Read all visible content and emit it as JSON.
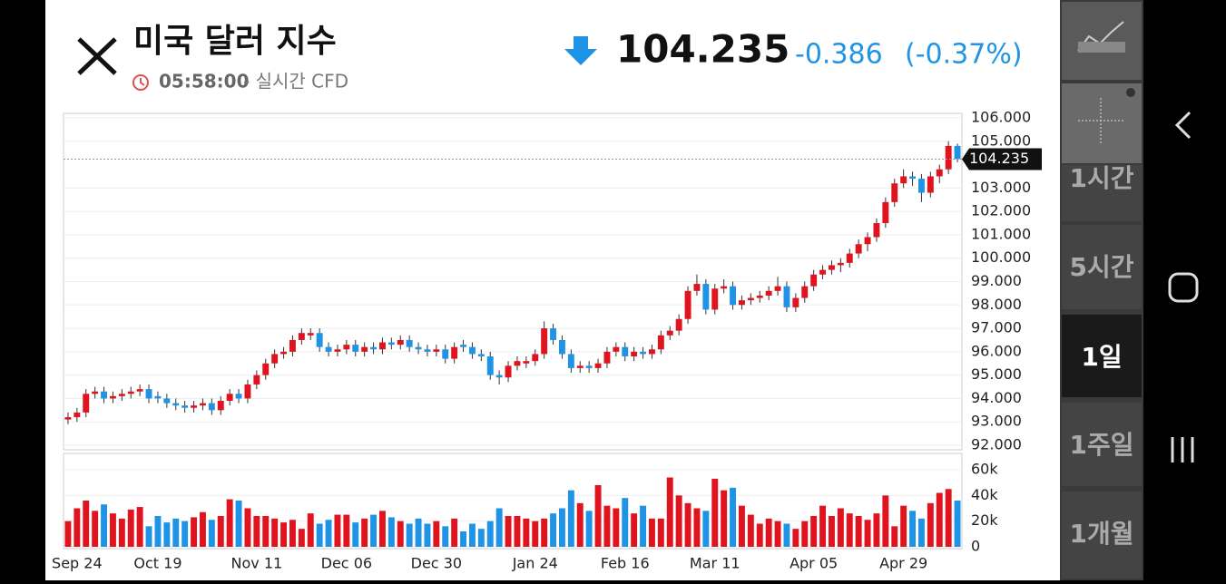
{
  "header": {
    "title": "미국 달러 지수",
    "time": "05:58:00",
    "source": "- 실시간 CFD",
    "price": "104.235",
    "change": "-0.386",
    "change_pct": "(-0.37%)"
  },
  "sidebar": {
    "buttons": [
      "1시간",
      "5시간",
      "1일",
      "1주일",
      "1개월"
    ],
    "selected": 2
  },
  "chart_data": {
    "type": "candlestick",
    "current": 104.235,
    "current_label": "104.235",
    "ylim": [
      92,
      106
    ],
    "yticks": [
      {
        "value": 92,
        "label": "92.000"
      },
      {
        "value": 93,
        "label": "93.000"
      },
      {
        "value": 94,
        "label": "94.000"
      },
      {
        "value": 95,
        "label": "95.000"
      },
      {
        "value": 96,
        "label": "96.000"
      },
      {
        "value": 97,
        "label": "97.000"
      },
      {
        "value": 98,
        "label": "98.000"
      },
      {
        "value": 99,
        "label": "99.000"
      },
      {
        "value": 100,
        "label": "100.000"
      },
      {
        "value": 101,
        "label": "101.000"
      },
      {
        "value": 102,
        "label": "102.000"
      },
      {
        "value": 103,
        "label": "103.000"
      },
      {
        "value": 105,
        "label": "105.000"
      },
      {
        "value": 106,
        "label": "106.000"
      }
    ],
    "volume_lim": [
      0,
      60000
    ],
    "volume_ticks": [
      {
        "value": 0,
        "label": "0"
      },
      {
        "value": 20000,
        "label": "20k"
      },
      {
        "value": 40000,
        "label": "40k"
      },
      {
        "value": 60000,
        "label": "60k"
      }
    ],
    "xlabels": [
      {
        "index": 1,
        "label": "Sep 24"
      },
      {
        "index": 10,
        "label": "Oct 19"
      },
      {
        "index": 21,
        "label": "Nov 11"
      },
      {
        "index": 31,
        "label": "Dec 06"
      },
      {
        "index": 41,
        "label": "Dec 30"
      },
      {
        "index": 52,
        "label": "Jan 24"
      },
      {
        "index": 62,
        "label": "Feb 16"
      },
      {
        "index": 72,
        "label": "Mar 11"
      },
      {
        "index": 83,
        "label": "Apr 05"
      },
      {
        "index": 93,
        "label": "Apr 29"
      }
    ],
    "up_color": "#e0141e",
    "down_color": "#1f93e6",
    "ohlc": [
      [
        93.1,
        93.4,
        92.9,
        93.2
      ],
      [
        93.2,
        93.6,
        93.0,
        93.4
      ],
      [
        93.4,
        94.4,
        93.2,
        94.2
      ],
      [
        94.2,
        94.5,
        94.0,
        94.3
      ],
      [
        94.3,
        94.5,
        93.8,
        94.0
      ],
      [
        94.0,
        94.3,
        93.8,
        94.1
      ],
      [
        94.1,
        94.4,
        93.9,
        94.2
      ],
      [
        94.2,
        94.5,
        94.0,
        94.3
      ],
      [
        94.3,
        94.6,
        94.1,
        94.4
      ],
      [
        94.4,
        94.6,
        93.8,
        94.0
      ],
      [
        94.1,
        94.3,
        93.8,
        94.0
      ],
      [
        94.0,
        94.2,
        93.6,
        93.8
      ],
      [
        93.8,
        94.0,
        93.5,
        93.7
      ],
      [
        93.7,
        93.9,
        93.4,
        93.6
      ],
      [
        93.6,
        93.9,
        93.4,
        93.7
      ],
      [
        93.7,
        94.0,
        93.5,
        93.8
      ],
      [
        93.8,
        94.0,
        93.3,
        93.5
      ],
      [
        93.5,
        94.1,
        93.3,
        93.9
      ],
      [
        93.9,
        94.4,
        93.7,
        94.2
      ],
      [
        94.2,
        94.4,
        93.8,
        94.0
      ],
      [
        94.0,
        94.8,
        93.8,
        94.6
      ],
      [
        94.6,
        95.2,
        94.4,
        95.0
      ],
      [
        95.0,
        95.7,
        94.8,
        95.5
      ],
      [
        95.5,
        96.1,
        95.3,
        95.9
      ],
      [
        95.9,
        96.2,
        95.7,
        96.0
      ],
      [
        96.0,
        96.7,
        95.8,
        96.5
      ],
      [
        96.5,
        97.0,
        96.3,
        96.8
      ],
      [
        96.7,
        97.0,
        96.5,
        96.8
      ],
      [
        96.8,
        97.0,
        96.0,
        96.2
      ],
      [
        96.2,
        96.4,
        95.8,
        96.0
      ],
      [
        96.0,
        96.3,
        95.8,
        96.1
      ],
      [
        96.1,
        96.5,
        95.9,
        96.3
      ],
      [
        96.3,
        96.5,
        95.8,
        96.0
      ],
      [
        96.0,
        96.4,
        95.8,
        96.2
      ],
      [
        96.2,
        96.4,
        95.9,
        96.1
      ],
      [
        96.1,
        96.6,
        95.9,
        96.4
      ],
      [
        96.4,
        96.6,
        96.1,
        96.3
      ],
      [
        96.3,
        96.7,
        96.1,
        96.5
      ],
      [
        96.5,
        96.7,
        96.0,
        96.2
      ],
      [
        96.2,
        96.4,
        95.9,
        96.1
      ],
      [
        96.1,
        96.3,
        95.8,
        96.0
      ],
      [
        96.0,
        96.3,
        95.8,
        96.1
      ],
      [
        96.1,
        96.3,
        95.5,
        95.7
      ],
      [
        95.7,
        96.4,
        95.5,
        96.2
      ],
      [
        96.3,
        96.5,
        96.0,
        96.2
      ],
      [
        96.2,
        96.4,
        95.7,
        95.9
      ],
      [
        95.9,
        96.1,
        95.6,
        95.8
      ],
      [
        95.8,
        96.0,
        94.8,
        95.0
      ],
      [
        95.0,
        95.2,
        94.6,
        94.9
      ],
      [
        94.9,
        95.6,
        94.7,
        95.4
      ],
      [
        95.4,
        95.8,
        95.2,
        95.6
      ],
      [
        95.5,
        95.8,
        95.3,
        95.6
      ],
      [
        95.6,
        96.1,
        95.4,
        95.9
      ],
      [
        95.9,
        97.3,
        95.7,
        97.0
      ],
      [
        97.0,
        97.2,
        96.3,
        96.5
      ],
      [
        96.5,
        96.7,
        95.7,
        95.9
      ],
      [
        95.9,
        96.1,
        95.1,
        95.3
      ],
      [
        95.3,
        95.6,
        95.1,
        95.4
      ],
      [
        95.4,
        95.6,
        95.1,
        95.3
      ],
      [
        95.3,
        95.7,
        95.1,
        95.5
      ],
      [
        95.5,
        96.2,
        95.3,
        96.0
      ],
      [
        96.0,
        96.4,
        95.8,
        96.2
      ],
      [
        96.2,
        96.4,
        95.6,
        95.8
      ],
      [
        95.8,
        96.2,
        95.6,
        96.0
      ],
      [
        96.0,
        96.2,
        95.7,
        95.9
      ],
      [
        95.9,
        96.3,
        95.7,
        96.1
      ],
      [
        96.1,
        96.9,
        95.9,
        96.7
      ],
      [
        96.7,
        97.1,
        96.5,
        96.9
      ],
      [
        96.9,
        97.6,
        96.7,
        97.4
      ],
      [
        97.4,
        98.8,
        97.2,
        98.6
      ],
      [
        98.6,
        99.3,
        98.4,
        98.9
      ],
      [
        98.9,
        99.1,
        97.6,
        97.8
      ],
      [
        97.8,
        98.9,
        97.6,
        98.7
      ],
      [
        98.7,
        99.1,
        98.5,
        98.8
      ],
      [
        98.8,
        99.0,
        97.8,
        98.0
      ],
      [
        98.0,
        98.4,
        97.8,
        98.2
      ],
      [
        98.2,
        98.5,
        98.0,
        98.3
      ],
      [
        98.3,
        98.6,
        98.1,
        98.4
      ],
      [
        98.4,
        98.8,
        98.2,
        98.6
      ],
      [
        98.6,
        99.2,
        98.4,
        98.8
      ],
      [
        98.8,
        99.0,
        97.7,
        97.9
      ],
      [
        97.9,
        98.5,
        97.7,
        98.3
      ],
      [
        98.3,
        99.0,
        98.1,
        98.8
      ],
      [
        98.8,
        99.5,
        98.6,
        99.3
      ],
      [
        99.3,
        99.7,
        99.1,
        99.5
      ],
      [
        99.5,
        99.9,
        99.3,
        99.7
      ],
      [
        99.7,
        100.0,
        99.4,
        99.8
      ],
      [
        99.8,
        100.4,
        99.6,
        100.2
      ],
      [
        100.2,
        100.8,
        100.0,
        100.6
      ],
      [
        100.6,
        101.1,
        100.3,
        100.9
      ],
      [
        100.9,
        101.7,
        100.7,
        101.5
      ],
      [
        101.5,
        102.6,
        101.3,
        102.4
      ],
      [
        102.4,
        103.4,
        102.2,
        103.2
      ],
      [
        103.2,
        103.8,
        103.0,
        103.5
      ],
      [
        103.5,
        103.7,
        103.1,
        103.4
      ],
      [
        103.4,
        103.6,
        102.4,
        102.8
      ],
      [
        102.8,
        103.7,
        102.6,
        103.5
      ],
      [
        103.5,
        104.0,
        103.2,
        103.8
      ],
      [
        103.8,
        105.0,
        103.6,
        104.8
      ],
      [
        104.8,
        104.9,
        104.1,
        104.235
      ]
    ],
    "volume": [
      20000,
      30000,
      36000,
      28000,
      33000,
      26000,
      22000,
      29000,
      31000,
      16000,
      24000,
      19000,
      22000,
      20000,
      23000,
      27000,
      21000,
      24000,
      37000,
      36000,
      30000,
      24000,
      24000,
      22000,
      19000,
      21000,
      14000,
      26000,
      18000,
      21000,
      25000,
      25000,
      19000,
      22000,
      25000,
      28000,
      23000,
      20000,
      18000,
      22000,
      18000,
      20000,
      16000,
      22000,
      12000,
      18000,
      14000,
      20000,
      30000,
      24000,
      24000,
      22000,
      20000,
      22000,
      26000,
      30000,
      44000,
      34000,
      28000,
      48000,
      32000,
      30000,
      38000,
      26000,
      32000,
      22000,
      22000,
      54000,
      40000,
      34000,
      30000,
      28000,
      53000,
      44000,
      46000,
      32000,
      25000,
      18000,
      22000,
      20000,
      18000,
      14000,
      20000,
      24000,
      32000,
      24000,
      30000,
      26000,
      24000,
      21000,
      26000,
      40000,
      16000,
      32000,
      28000,
      22000,
      34000,
      42000,
      45000,
      36000
    ]
  }
}
